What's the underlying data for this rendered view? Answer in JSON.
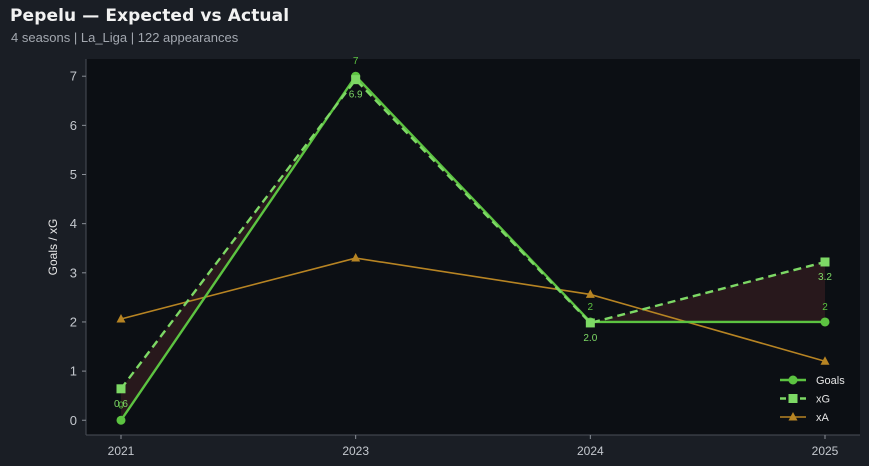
{
  "header": {
    "title": "Pepelu — Expected vs Actual",
    "subtitle": "4 seasons | La_Liga | 122 appearances"
  },
  "colors": {
    "background": "#1a1e25",
    "plot_area": "#0c0f14",
    "goals": "#5cc341",
    "xg": "#7dd865",
    "xa": "#b78423",
    "shade": "#2b1a1d"
  },
  "chart_data": {
    "type": "line",
    "categories": [
      "2021",
      "2023",
      "2024",
      "2025"
    ],
    "ylabel": "Goals / xG",
    "ylim": [
      -0.3,
      7.35
    ],
    "yticks": [
      0,
      1,
      2,
      3,
      4,
      5,
      6,
      7
    ],
    "grid": false,
    "legend_position": "bottom-right",
    "series": [
      {
        "name": "Goals",
        "values": [
          0,
          7,
          2,
          2
        ],
        "marker": "circle",
        "style": "solid",
        "labels": [
          "0",
          "7",
          "2",
          "2"
        ]
      },
      {
        "name": "xG",
        "values": [
          0.64,
          6.93,
          1.98,
          3.22
        ],
        "marker": "square",
        "style": "dashed",
        "labels": [
          "0.6",
          "6.9",
          "2.0",
          "3.2"
        ]
      },
      {
        "name": "xA",
        "values": [
          2.06,
          3.3,
          2.56,
          1.2
        ],
        "marker": "triangle",
        "style": "solid"
      }
    ]
  }
}
